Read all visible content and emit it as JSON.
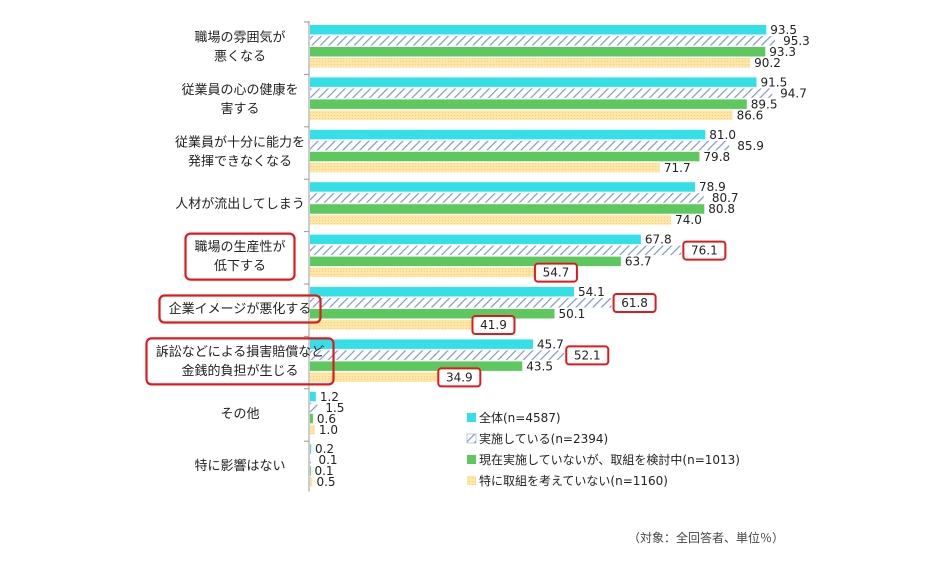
{
  "chart_data": {
    "type": "bar",
    "orientation": "horizontal",
    "categories": [
      [
        "職場の雰囲気が",
        "悪くなる"
      ],
      [
        "従業員の心の健康を",
        "害する"
      ],
      [
        "従業員が十分に能力を",
        "発揮できなくなる"
      ],
      [
        "人材が流出してしまう"
      ],
      [
        "職場の生産性が",
        "低下する"
      ],
      [
        "企業イメージが悪化する"
      ],
      [
        "訴訟などによる損害賠償など",
        "金銭的負担が生じる"
      ],
      [
        "その他"
      ],
      [
        "特に影響はない"
      ]
    ],
    "highlighted_categories": [
      4,
      5,
      6
    ],
    "series": [
      {
        "name": "全体(n=4587)",
        "values": [
          93.5,
          91.5,
          81.0,
          78.9,
          67.8,
          54.1,
          45.7,
          1.2,
          0.2
        ]
      },
      {
        "name": "実施している(n=2394)",
        "values": [
          95.3,
          94.7,
          85.9,
          80.7,
          76.1,
          61.8,
          52.1,
          1.5,
          0.1
        ]
      },
      {
        "name": "現在実施していないが、取組を検討中(n=1013)",
        "values": [
          93.3,
          89.5,
          79.8,
          80.8,
          63.7,
          50.1,
          43.5,
          0.6,
          0.1
        ]
      },
      {
        "name": "特に取組を考えていない(n=1160)",
        "values": [
          90.2,
          86.6,
          71.7,
          74.0,
          54.7,
          41.9,
          34.9,
          1.0,
          0.5
        ]
      }
    ],
    "boxed_labels": [
      {
        "series": 1,
        "category": 4
      },
      {
        "series": 3,
        "category": 4
      },
      {
        "series": 1,
        "category": 5
      },
      {
        "series": 3,
        "category": 5
      },
      {
        "series": 1,
        "category": 6
      },
      {
        "series": 3,
        "category": 6
      }
    ],
    "colors": {
      "series": [
        "#33e0e8",
        "#7e96d6",
        "#5cc85e",
        "#fde6a6"
      ],
      "highlight": "#e0191f"
    },
    "xlim": [
      0,
      100
    ],
    "grid": false,
    "legend_position": "bottom-right",
    "note": "（対象：全回答者、単位％）"
  }
}
